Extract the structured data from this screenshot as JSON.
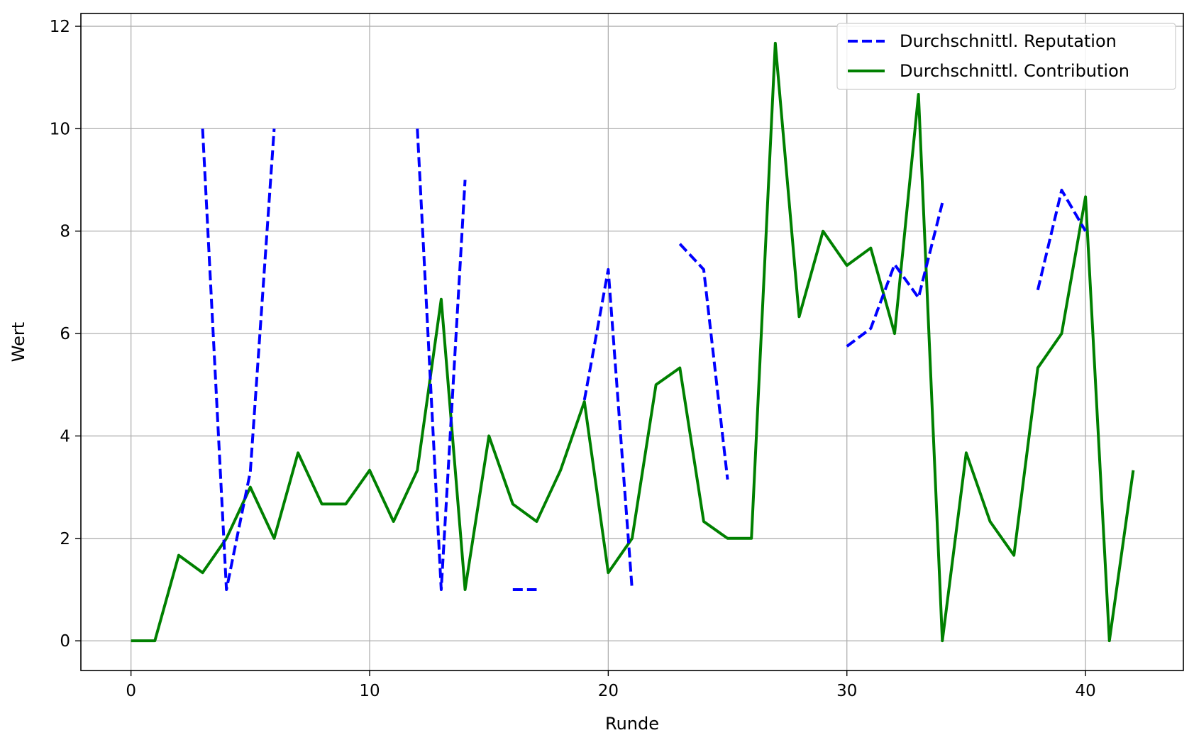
{
  "chart_data": {
    "type": "line",
    "title": "",
    "xlabel": "Runde",
    "ylabel": "Wert",
    "xlim": [
      -2.1,
      44.1
    ],
    "ylim": [
      -0.58,
      12.25
    ],
    "xticks": [
      0,
      10,
      20,
      30,
      40
    ],
    "yticks": [
      0,
      2,
      4,
      6,
      8,
      10,
      12
    ],
    "grid": true,
    "legend": {
      "position": "top-right",
      "entries": [
        "Durchschnittl. Reputation",
        "Durchschnittl. Contribution"
      ]
    },
    "x": [
      0,
      1,
      2,
      3,
      4,
      5,
      6,
      7,
      8,
      9,
      10,
      11,
      12,
      13,
      14,
      15,
      16,
      17,
      18,
      19,
      20,
      21,
      22,
      23,
      24,
      25,
      26,
      27,
      28,
      29,
      30,
      31,
      32,
      33,
      34,
      35,
      36,
      37,
      38,
      39,
      40,
      41,
      42
    ],
    "series": [
      {
        "name": "Durchschnittl. Reputation",
        "color": "#0000ff",
        "style": "dashed",
        "values": [
          null,
          null,
          null,
          10,
          1,
          3.3,
          10,
          null,
          null,
          null,
          null,
          null,
          10,
          1,
          9,
          null,
          1,
          1,
          null,
          4.7,
          7.25,
          1,
          null,
          7.75,
          7.25,
          3.15,
          null,
          null,
          null,
          null,
          5.75,
          6.1,
          7.35,
          6.7,
          8.55,
          null,
          null,
          null,
          6.85,
          8.8,
          8,
          null,
          null
        ]
      },
      {
        "name": "Durchschnittl. Contribution",
        "color": "#008000",
        "style": "solid",
        "values": [
          0,
          0,
          1.67,
          1.33,
          2,
          3,
          2,
          3.67,
          2.67,
          2.67,
          3.33,
          2.33,
          3.33,
          6.67,
          1,
          4,
          2.67,
          2.33,
          3.33,
          4.67,
          1.33,
          2,
          5,
          5.33,
          2.33,
          2,
          2,
          11.67,
          6.33,
          8,
          7.33,
          7.67,
          6,
          10.67,
          0,
          3.67,
          2.33,
          1.67,
          5.33,
          6,
          8.67,
          0,
          3.33
        ]
      }
    ]
  }
}
